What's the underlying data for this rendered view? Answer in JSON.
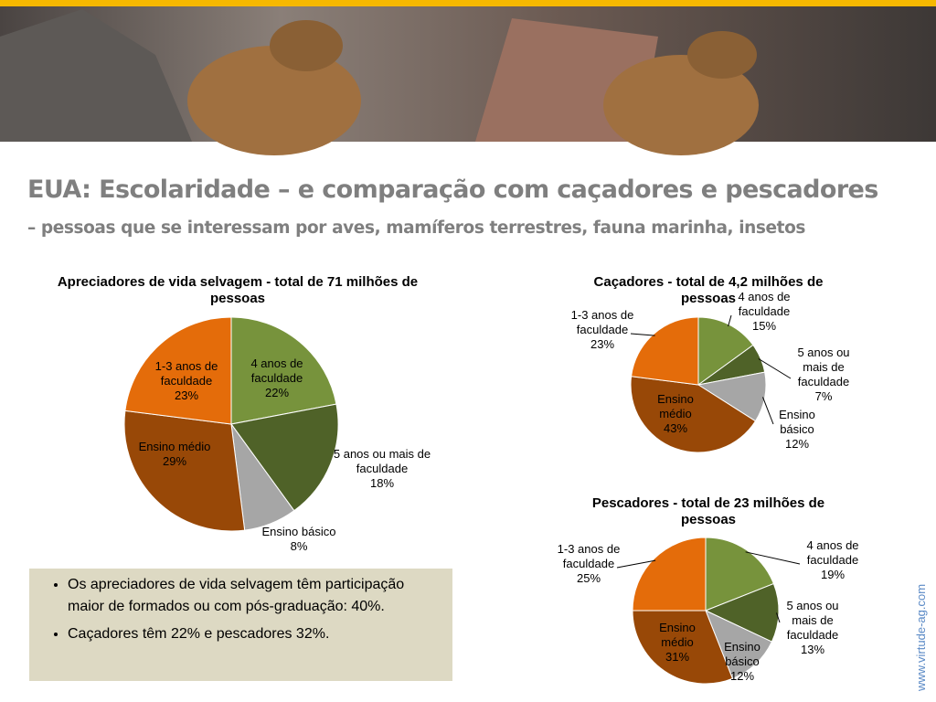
{
  "slide": {
    "title": "EUA: Escolaridade – e comparação com caçadores e pescadores",
    "subtitle": "– pessoas que se interessam por aves, mamíferos terrestres, fauna marinha, insetos",
    "bullets": [
      "Os apreciadores de vida selvagem têm participação maior de formados ou com pós-graduação: 40%.",
      "Caçadores têm 22% e pescadores 32%."
    ],
    "footer": "www.virtude-ag.com"
  },
  "chart_data": [
    {
      "type": "pie",
      "title": "Apreciadores de vida selvagem - total de 71 milhões de pessoas",
      "categories": [
        "4 anos de faculdade",
        "5 anos ou mais de faculdade",
        "Ensino básico",
        "Ensino médio",
        "1-3 anos de faculdade"
      ],
      "values": [
        22,
        18,
        8,
        29,
        23
      ],
      "value_labels": [
        "22%",
        "18%",
        "8%",
        "29%",
        "23%"
      ],
      "colors": [
        "#77933c",
        "#4f6228",
        "#a6a6a6",
        "#984807",
        "#e46c0a"
      ]
    },
    {
      "type": "pie",
      "title": "Caçadores - total de 4,2 milhões de pessoas",
      "categories": [
        "4 anos de faculdade",
        "5 anos ou mais de faculdade",
        "Ensino básico",
        "Ensino médio",
        "1-3 anos de faculdade"
      ],
      "values": [
        15,
        7,
        12,
        43,
        23
      ],
      "value_labels": [
        "15%",
        "7%",
        "12%",
        "43%",
        "23%"
      ],
      "colors": [
        "#77933c",
        "#4f6228",
        "#a6a6a6",
        "#984807",
        "#e46c0a"
      ]
    },
    {
      "type": "pie",
      "title": "Pescadores - total de 23 milhões de pessoas",
      "categories": [
        "4 anos de faculdade",
        "5 anos ou mais de faculdade",
        "Ensino básico",
        "Ensino médio",
        "1-3 anos de faculdade"
      ],
      "values": [
        19,
        13,
        12,
        31,
        25
      ],
      "value_labels": [
        "19%",
        "13%",
        "12%",
        "31%",
        "25%"
      ],
      "colors": [
        "#77933c",
        "#4f6228",
        "#a6a6a6",
        "#984807",
        "#e46c0a"
      ]
    }
  ]
}
